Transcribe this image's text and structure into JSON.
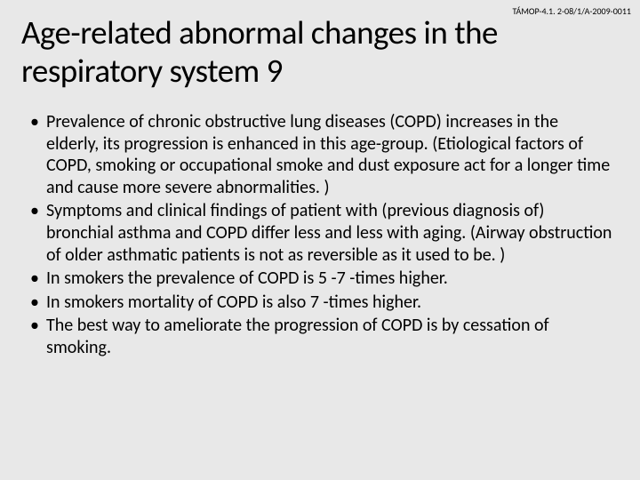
{
  "header": {
    "code": "TÁMOP-4.1. 2-08/1/A-2009-0011"
  },
  "title": "Age-related abnormal changes in the respiratory system 9",
  "bullets": [
    "Prevalence of chronic obstructive lung diseases (COPD) increases in the elderly, its progression is enhanced in this age-group. (Etiological factors of COPD, smoking or occupational smoke and dust exposure act for a longer time and cause more severe abnormalities. )",
    "Symptoms and clinical findings of  patient with  (previous diagnosis of) bronchial asthma and COPD differ less and less with aging. (Airway obstruction of older asthmatic patients is not as reversible as it used to be. )",
    "In smokers the prevalence of COPD is 5 -7 -times higher.",
    "In smokers mortality of COPD is also 7 -times higher.",
    "The best way to ameliorate the progression of COPD is by cessation of smoking."
  ],
  "styles": {
    "background_color": "#e8e8e8",
    "text_color": "#000000",
    "title_fontsize": 37,
    "body_fontsize": 20,
    "header_code_fontsize": 10
  }
}
